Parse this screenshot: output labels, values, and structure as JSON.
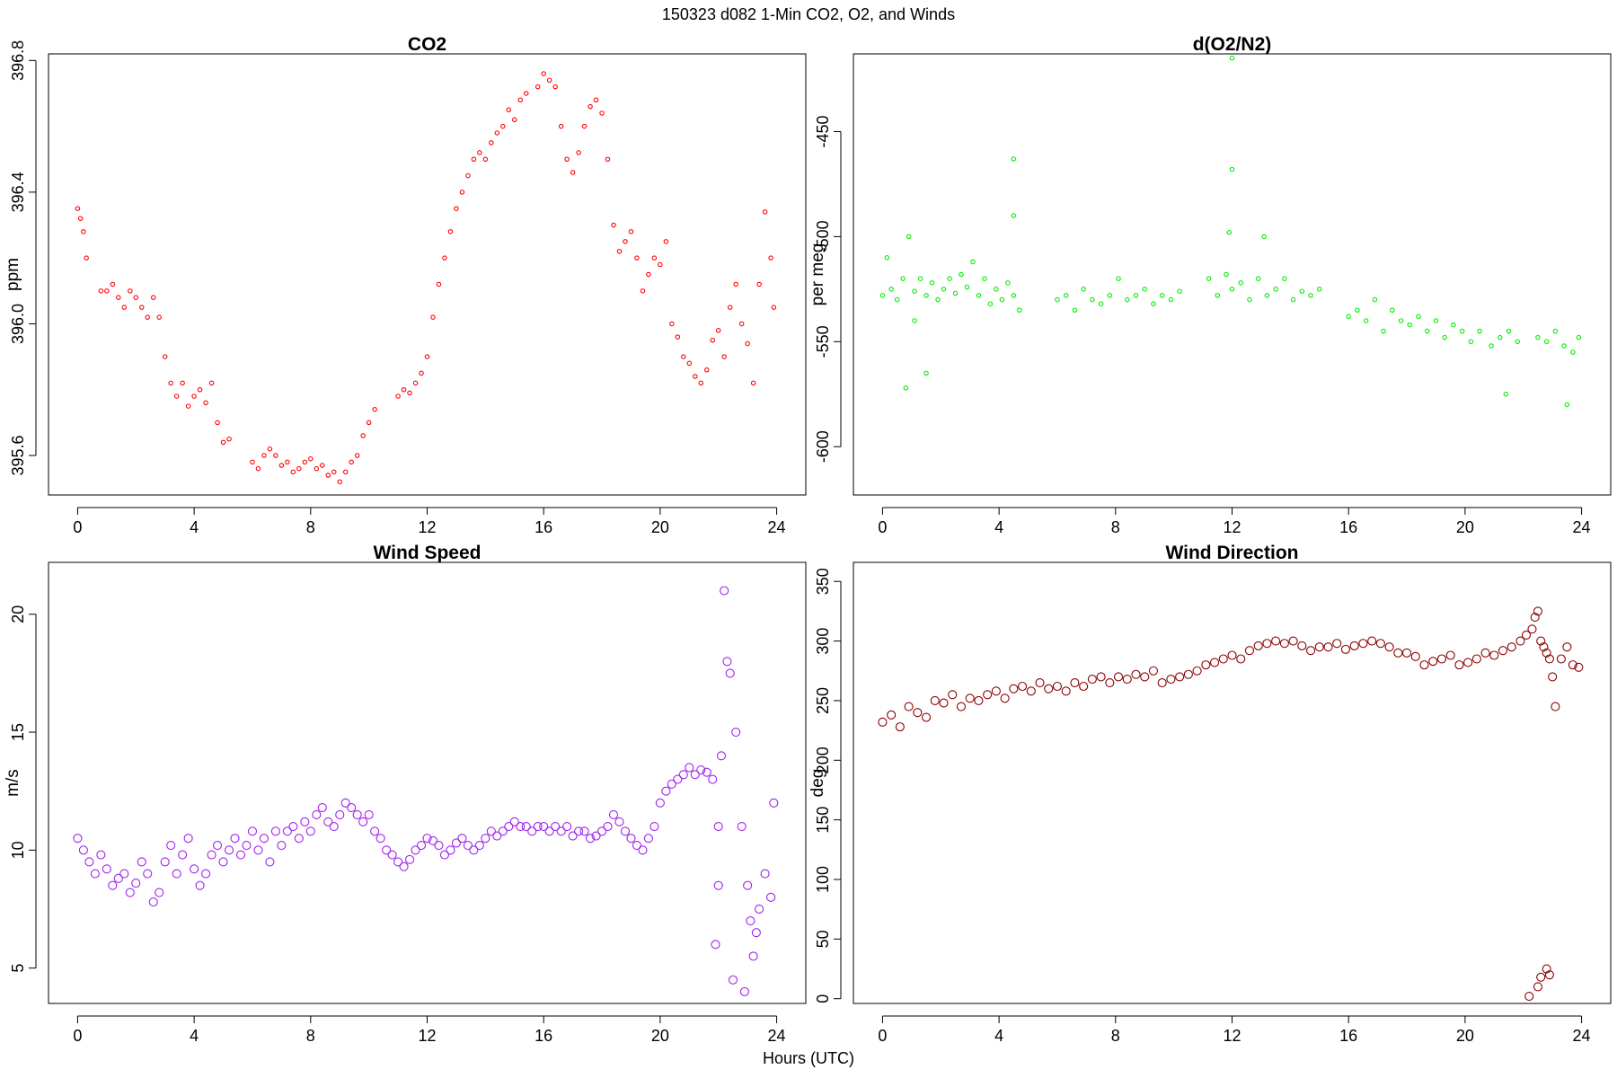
{
  "page": {
    "title": "150323   d082   1-Min CO2, O2, and Winds",
    "x_caption": "Hours (UTC)"
  },
  "chart_data": [
    {
      "type": "scatter",
      "title": "CO2",
      "xlabel": "",
      "ylabel": "ppm",
      "xlim": [
        -1,
        25
      ],
      "ylim": [
        395.48,
        396.82
      ],
      "xticks": [
        0,
        4,
        8,
        12,
        16,
        20,
        24
      ],
      "yticks": [
        395.6,
        396.0,
        396.4,
        396.8
      ],
      "ytick_labels": [
        "395.6",
        "396.0",
        "396.4",
        "396.8"
      ],
      "color": "#ff0000",
      "marker": "small-open-circle",
      "series": [
        {
          "x": [
            0.0,
            0.1,
            0.2,
            0.3,
            0.8,
            1.0,
            1.2,
            1.4,
            1.6,
            1.8,
            2.0,
            2.2,
            2.4,
            2.6,
            2.8,
            3.0,
            3.2,
            3.4,
            3.6,
            3.8,
            4.0,
            4.2,
            4.4,
            4.6,
            4.8,
            5.0,
            5.2,
            6.0,
            6.2,
            6.4,
            6.6,
            6.8,
            7.0,
            7.2,
            7.4,
            7.6,
            7.8,
            8.0,
            8.2,
            8.4,
            8.6,
            8.8,
            9.0,
            9.2,
            9.4,
            9.6,
            9.8,
            10.0,
            10.2,
            11.0,
            11.2,
            11.4,
            11.6,
            11.8,
            12.0,
            12.2,
            12.4,
            12.6,
            12.8,
            13.0,
            13.2,
            13.4,
            13.6,
            13.8,
            14.0,
            14.2,
            14.4,
            14.6,
            14.8,
            15.0,
            15.2,
            15.4,
            15.8,
            16.0,
            16.2,
            16.4,
            16.6,
            16.8,
            17.0,
            17.2,
            17.4,
            17.6,
            17.8,
            18.0,
            18.2,
            18.4,
            18.6,
            18.8,
            19.0,
            19.2,
            19.4,
            19.6,
            19.8,
            20.0,
            20.2,
            20.4,
            20.6,
            20.8,
            21.0,
            21.2,
            21.4,
            21.6,
            21.8,
            22.0,
            22.2,
            22.4,
            22.6,
            22.8,
            23.0,
            23.2,
            23.4,
            23.6,
            23.8,
            23.9
          ],
          "y": [
            396.35,
            396.32,
            396.28,
            396.2,
            396.1,
            396.1,
            396.12,
            396.08,
            396.05,
            396.1,
            396.08,
            396.05,
            396.02,
            396.08,
            396.02,
            395.9,
            395.82,
            395.78,
            395.82,
            395.75,
            395.78,
            395.8,
            395.76,
            395.82,
            395.7,
            395.64,
            395.65,
            395.58,
            395.56,
            395.6,
            395.62,
            395.6,
            395.57,
            395.58,
            395.55,
            395.56,
            395.58,
            395.59,
            395.56,
            395.57,
            395.54,
            395.55,
            395.52,
            395.55,
            395.58,
            395.6,
            395.66,
            395.7,
            395.74,
            395.78,
            395.8,
            395.79,
            395.82,
            395.85,
            395.9,
            396.02,
            396.12,
            396.2,
            396.28,
            396.35,
            396.4,
            396.45,
            396.5,
            396.52,
            396.5,
            396.55,
            396.58,
            396.6,
            396.65,
            396.62,
            396.68,
            396.7,
            396.72,
            396.76,
            396.74,
            396.72,
            396.6,
            396.5,
            396.46,
            396.52,
            396.6,
            396.66,
            396.68,
            396.64,
            396.5,
            396.3,
            396.22,
            396.25,
            396.28,
            396.2,
            396.1,
            396.15,
            396.2,
            396.18,
            396.25,
            396.0,
            395.96,
            395.9,
            395.88,
            395.84,
            395.82,
            395.86,
            395.95,
            395.98,
            395.9,
            396.05,
            396.12,
            396.0,
            395.94,
            395.82,
            396.12,
            396.34,
            396.2,
            396.05
          ]
        }
      ]
    },
    {
      "type": "scatter",
      "title": "d(O2/N2)",
      "xlabel": "",
      "ylabel": "per meg",
      "xlim": [
        -1,
        25
      ],
      "ylim": [
        -623,
        -413
      ],
      "xticks": [
        0,
        4,
        8,
        12,
        16,
        20,
        24
      ],
      "yticks": [
        -450,
        -500,
        -550,
        -600
      ],
      "ytick_labels": [
        "-450",
        "-500",
        "-550",
        "-600"
      ],
      "color": "#00ee00",
      "marker": "small-open-circle",
      "series": [
        {
          "x": [
            0.0,
            0.15,
            0.3,
            0.5,
            0.7,
            0.9,
            1.1,
            1.3,
            1.5,
            1.7,
            1.9,
            2.1,
            2.3,
            2.5,
            2.7,
            2.9,
            3.1,
            3.3,
            3.5,
            3.7,
            3.9,
            4.1,
            4.3,
            4.5,
            4.7,
            0.8,
            1.1,
            1.5,
            4.5,
            4.5,
            6.0,
            6.3,
            6.6,
            6.9,
            7.2,
            7.5,
            7.8,
            8.1,
            8.4,
            8.7,
            9.0,
            9.3,
            9.6,
            9.9,
            10.2,
            11.2,
            11.5,
            11.8,
            12.0,
            12.3,
            12.6,
            12.9,
            13.2,
            13.5,
            13.8,
            14.1,
            14.4,
            14.7,
            15.0,
            12.0,
            12.0,
            11.9,
            13.1,
            16.0,
            16.3,
            16.6,
            16.9,
            17.2,
            17.5,
            17.8,
            18.1,
            18.4,
            18.7,
            19.0,
            19.3,
            19.6,
            19.9,
            20.2,
            20.5,
            20.9,
            21.2,
            21.5,
            21.8,
            21.4,
            22.5,
            22.8,
            23.1,
            23.4,
            23.7,
            23.9,
            23.5
          ],
          "y": [
            -528,
            -510,
            -525,
            -530,
            -520,
            -500,
            -526,
            -520,
            -528,
            -522,
            -530,
            -525,
            -520,
            -527,
            -518,
            -524,
            -512,
            -528,
            -520,
            -532,
            -525,
            -530,
            -522,
            -528,
            -535,
            -572,
            -540,
            -565,
            -463,
            -490,
            -530,
            -528,
            -535,
            -525,
            -530,
            -532,
            -528,
            -520,
            -530,
            -528,
            -525,
            -532,
            -528,
            -530,
            -526,
            -520,
            -528,
            -518,
            -525,
            -522,
            -530,
            -520,
            -528,
            -525,
            -520,
            -530,
            -526,
            -528,
            -525,
            -415,
            -468,
            -498,
            -500,
            -538,
            -535,
            -540,
            -530,
            -545,
            -535,
            -540,
            -542,
            -538,
            -545,
            -540,
            -548,
            -542,
            -545,
            -550,
            -545,
            -552,
            -548,
            -545,
            -550,
            -575,
            -548,
            -550,
            -545,
            -552,
            -555,
            -548,
            -580
          ]
        }
      ]
    },
    {
      "type": "scatter",
      "title": "Wind Speed",
      "xlabel": "",
      "ylabel": "m/s",
      "xlim": [
        -1,
        25
      ],
      "ylim": [
        3.5,
        22.2
      ],
      "xticks": [
        0,
        4,
        8,
        12,
        16,
        20,
        24
      ],
      "yticks": [
        5,
        10,
        15,
        20
      ],
      "ytick_labels": [
        "5",
        "10",
        "15",
        "20"
      ],
      "color": "#a020f0",
      "marker": "large-open-circle",
      "series": [
        {
          "x": [
            0.0,
            0.2,
            0.4,
            0.6,
            0.8,
            1.0,
            1.2,
            1.4,
            1.6,
            1.8,
            2.0,
            2.2,
            2.4,
            2.6,
            2.8,
            3.0,
            3.2,
            3.4,
            3.6,
            3.8,
            4.0,
            4.2,
            4.4,
            4.6,
            4.8,
            5.0,
            5.2,
            5.4,
            5.6,
            5.8,
            6.0,
            6.2,
            6.4,
            6.6,
            6.8,
            7.0,
            7.2,
            7.4,
            7.6,
            7.8,
            8.0,
            8.2,
            8.4,
            8.6,
            8.8,
            9.0,
            9.2,
            9.4,
            9.6,
            9.8,
            10.0,
            10.2,
            10.4,
            10.6,
            10.8,
            11.0,
            11.2,
            11.4,
            11.6,
            11.8,
            12.0,
            12.2,
            12.4,
            12.6,
            12.8,
            13.0,
            13.2,
            13.4,
            13.6,
            13.8,
            14.0,
            14.2,
            14.4,
            14.6,
            14.8,
            15.0,
            15.2,
            15.4,
            15.6,
            15.8,
            16.0,
            16.2,
            16.4,
            16.6,
            16.8,
            17.0,
            17.2,
            17.4,
            17.6,
            17.8,
            18.0,
            18.2,
            18.4,
            18.6,
            18.8,
            19.0,
            19.2,
            19.4,
            19.6,
            19.8,
            20.0,
            20.2,
            20.4,
            20.6,
            20.8,
            21.0,
            21.2,
            21.4,
            21.6,
            21.8,
            22.0,
            22.1,
            22.2,
            22.4,
            22.6,
            22.8,
            23.0,
            23.2,
            23.4,
            23.6,
            23.8,
            23.9,
            22.0,
            22.3,
            22.5,
            21.9,
            22.9,
            23.1,
            23.3
          ],
          "y": [
            10.5,
            10.0,
            9.5,
            9.0,
            9.8,
            9.2,
            8.5,
            8.8,
            9.0,
            8.2,
            8.6,
            9.5,
            9.0,
            7.8,
            8.2,
            9.5,
            10.2,
            9.0,
            9.8,
            10.5,
            9.2,
            8.5,
            9.0,
            9.8,
            10.2,
            9.5,
            10.0,
            10.5,
            9.8,
            10.2,
            10.8,
            10.0,
            10.5,
            9.5,
            10.8,
            10.2,
            10.8,
            11.0,
            10.5,
            11.2,
            10.8,
            11.5,
            11.8,
            11.2,
            11.0,
            11.5,
            12.0,
            11.8,
            11.5,
            11.2,
            11.5,
            10.8,
            10.5,
            10.0,
            9.8,
            9.5,
            9.3,
            9.6,
            10.0,
            10.2,
            10.5,
            10.4,
            10.2,
            9.8,
            10.0,
            10.3,
            10.5,
            10.2,
            10.0,
            10.2,
            10.5,
            10.8,
            10.6,
            10.8,
            11.0,
            11.2,
            11.0,
            11.0,
            10.8,
            11.0,
            11.0,
            10.8,
            11.0,
            10.8,
            11.0,
            10.6,
            10.8,
            10.8,
            10.5,
            10.6,
            10.8,
            11.0,
            11.5,
            11.2,
            10.8,
            10.5,
            10.2,
            10.0,
            10.5,
            11.0,
            12.0,
            12.5,
            12.8,
            13.0,
            13.2,
            13.5,
            13.2,
            13.4,
            13.3,
            13.0,
            11.0,
            14.0,
            21.0,
            17.5,
            15.0,
            11.0,
            8.5,
            5.5,
            7.5,
            9.0,
            8.0,
            12.0,
            8.5,
            18.0,
            4.5,
            6.0,
            4.0,
            7.0,
            6.5
          ]
        }
      ]
    },
    {
      "type": "scatter",
      "title": "Wind Direction",
      "xlabel": "",
      "ylabel": "deg",
      "xlim": [
        -1,
        25
      ],
      "ylim": [
        -4,
        366
      ],
      "xticks": [
        0,
        4,
        8,
        12,
        16,
        20,
        24
      ],
      "yticks": [
        0,
        50,
        100,
        150,
        200,
        250,
        300,
        350
      ],
      "ytick_labels": [
        "0",
        "50",
        "100",
        "150",
        "200",
        "250",
        "300",
        "350"
      ],
      "color": "#8b0000",
      "marker": "large-open-circle",
      "series": [
        {
          "x": [
            0.0,
            0.3,
            0.6,
            0.9,
            1.2,
            1.5,
            1.8,
            2.1,
            2.4,
            2.7,
            3.0,
            3.3,
            3.6,
            3.9,
            4.2,
            4.5,
            4.8,
            5.1,
            5.4,
            5.7,
            6.0,
            6.3,
            6.6,
            6.9,
            7.2,
            7.5,
            7.8,
            8.1,
            8.4,
            8.7,
            9.0,
            9.3,
            9.6,
            9.9,
            10.2,
            10.5,
            10.8,
            11.1,
            11.4,
            11.7,
            12.0,
            12.3,
            12.6,
            12.9,
            13.2,
            13.5,
            13.8,
            14.1,
            14.4,
            14.7,
            15.0,
            15.3,
            15.6,
            15.9,
            16.2,
            16.5,
            16.8,
            17.1,
            17.4,
            17.7,
            18.0,
            18.3,
            18.6,
            18.9,
            19.2,
            19.5,
            19.8,
            20.1,
            20.4,
            20.7,
            21.0,
            21.3,
            21.6,
            21.9,
            22.1,
            22.3,
            22.4,
            22.5,
            22.6,
            22.7,
            22.8,
            22.9,
            23.0,
            23.1,
            23.3,
            23.5,
            23.7,
            23.9,
            22.2,
            22.5,
            22.6,
            22.8,
            22.9
          ],
          "y": [
            232,
            238,
            228,
            245,
            240,
            236,
            250,
            248,
            255,
            245,
            252,
            250,
            255,
            258,
            252,
            260,
            262,
            258,
            265,
            260,
            262,
            258,
            265,
            262,
            268,
            270,
            265,
            270,
            268,
            272,
            270,
            275,
            265,
            268,
            270,
            272,
            275,
            280,
            282,
            285,
            288,
            285,
            292,
            296,
            298,
            300,
            298,
            300,
            296,
            292,
            295,
            295,
            298,
            293,
            296,
            298,
            300,
            298,
            295,
            290,
            290,
            287,
            280,
            283,
            285,
            288,
            280,
            282,
            285,
            290,
            288,
            292,
            295,
            300,
            305,
            310,
            320,
            325,
            300,
            295,
            290,
            285,
            270,
            245,
            285,
            295,
            280,
            278,
            2,
            10,
            18,
            25,
            20
          ]
        }
      ]
    }
  ]
}
